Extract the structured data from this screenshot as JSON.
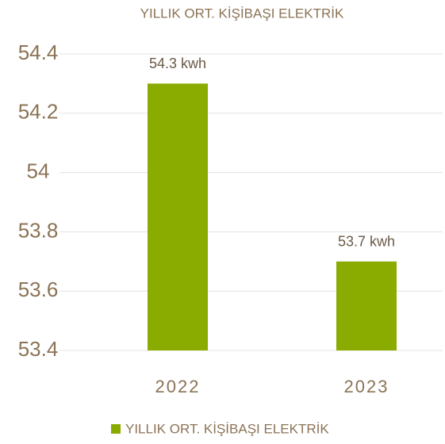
{
  "chart_data": {
    "type": "bar",
    "title": "YILLIK ORT. KİŞİBAŞI ELEKTRİK",
    "categories": [
      "2022",
      "2023"
    ],
    "series": [
      {
        "name": "YILLIK ORT. KİŞİBAŞI ELEKTRİK",
        "color": "#8aab00",
        "values": [
          54.3,
          53.7
        ],
        "value_labels": [
          "54.3 kwh",
          "53.7 kwh"
        ]
      }
    ],
    "ylim": [
      53.4,
      54.4
    ],
    "yticks": [
      53.4,
      53.6,
      53.8,
      54,
      54.2,
      54.4
    ],
    "grid": true,
    "legend": "bottom"
  }
}
